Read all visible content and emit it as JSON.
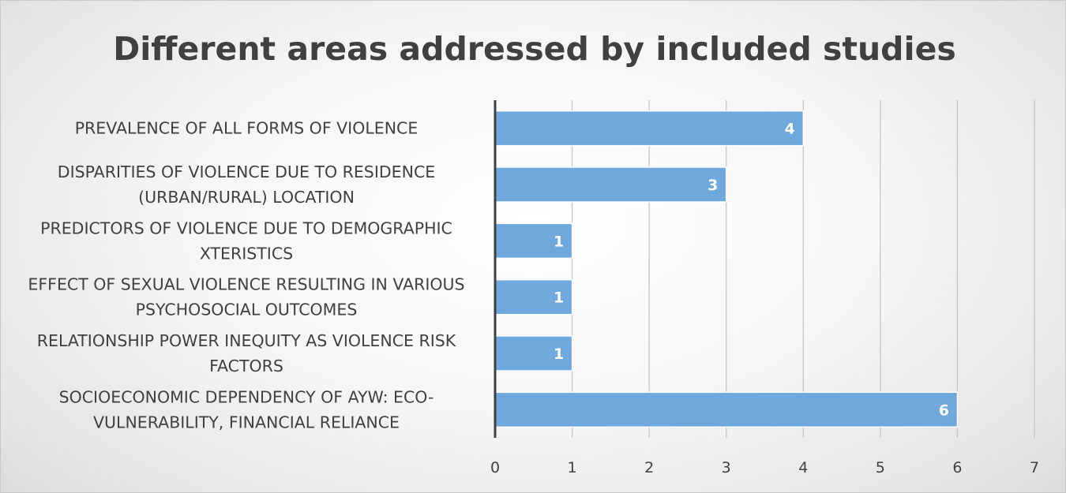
{
  "chart_data": {
    "type": "bar",
    "orientation": "horizontal",
    "title": "Different areas addressed by included studies",
    "categories": [
      [
        "PREVALENCE OF ALL FORMS OF VIOLENCE"
      ],
      [
        "DISPARITIES OF VIOLENCE DUE TO RESIDENCE",
        "(URBAN/RURAL) LOCATION"
      ],
      [
        "PREDICTORS OF VIOLENCE DUE TO DEMOGRAPHIC",
        "XTERISTICS"
      ],
      [
        "EFFECT OF SEXUAL VIOLENCE RESULTING IN VARIOUS",
        "PSYCHOSOCIAL OUTCOMES"
      ],
      [
        "RELATIONSHIP POWER INEQUITY AS VIOLENCE RISK",
        "FACTORS"
      ],
      [
        "SOCIOECONOMIC DEPENDENCY OF AYW: ECO-",
        "VULNERABILITY, FINANCIAL RELIANCE"
      ]
    ],
    "values": [
      4,
      3,
      1,
      1,
      1,
      6
    ],
    "data_labels": [
      "4",
      "3",
      "1",
      "1",
      "1",
      "6"
    ],
    "xlim": [
      0,
      7
    ],
    "xticks": [
      0,
      1,
      2,
      3,
      4,
      5,
      6,
      7
    ],
    "xtick_labels": [
      "0",
      "1",
      "2",
      "3",
      "4",
      "5",
      "6",
      "7"
    ],
    "xlabel": "",
    "ylabel": "",
    "grid": "vertical",
    "legend": "none",
    "bar_color": "#6fa8dc",
    "bar_border_color": "#ffffff",
    "data_label_color": "#ffffff",
    "text_color": "#404040",
    "gridline_color": "#c6c6c6"
  }
}
